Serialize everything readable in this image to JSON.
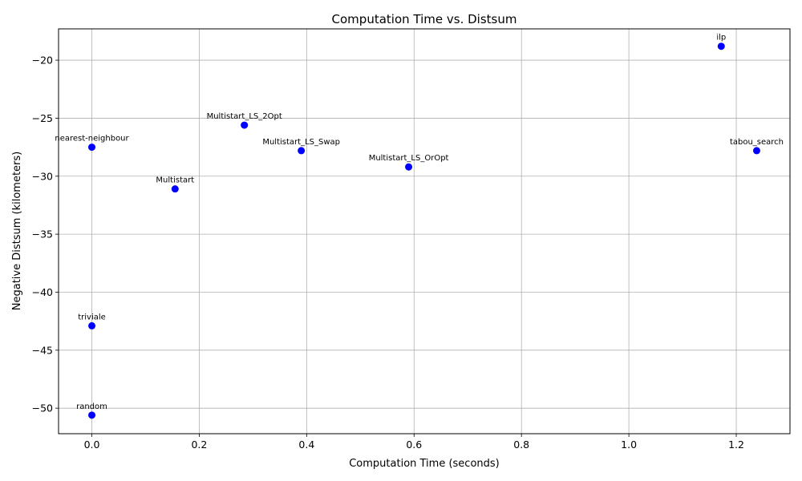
{
  "chart_data": {
    "type": "scatter",
    "title": "Computation Time vs. Distsum",
    "xlabel": "Computation Time (seconds)",
    "ylabel": "Negative Distsum (kilometers)",
    "xlim": [
      -0.062,
      1.3
    ],
    "ylim": [
      -52.2,
      -17.3
    ],
    "xticks": [
      0.0,
      0.2,
      0.4,
      0.6,
      0.8,
      1.0,
      1.2
    ],
    "xtick_labels": [
      "0.0",
      "0.2",
      "0.4",
      "0.6",
      "0.8",
      "1.0",
      "1.2"
    ],
    "yticks": [
      -50,
      -45,
      -40,
      -35,
      -30,
      -25,
      -20
    ],
    "ytick_labels": [
      "−50",
      "−45",
      "−40",
      "−35",
      "−30",
      "−25",
      "−20"
    ],
    "grid": true,
    "point_color": "#0000ff",
    "points": [
      {
        "label": "ilp",
        "x": 1.172,
        "y": -18.8
      },
      {
        "label": "Multistart_LS_2Opt",
        "x": 0.284,
        "y": -25.6
      },
      {
        "label": "nearest-neighbour",
        "x": 0.0,
        "y": -27.5
      },
      {
        "label": "Multistart_LS_Swap",
        "x": 0.39,
        "y": -27.8
      },
      {
        "label": "tabou_search",
        "x": 1.238,
        "y": -27.8
      },
      {
        "label": "Multistart_LS_OrOpt",
        "x": 0.59,
        "y": -29.2
      },
      {
        "label": "Multistart",
        "x": 0.155,
        "y": -31.1
      },
      {
        "label": "triviale",
        "x": 0.0,
        "y": -42.9
      },
      {
        "label": "random",
        "x": 0.0,
        "y": -50.6
      }
    ]
  }
}
